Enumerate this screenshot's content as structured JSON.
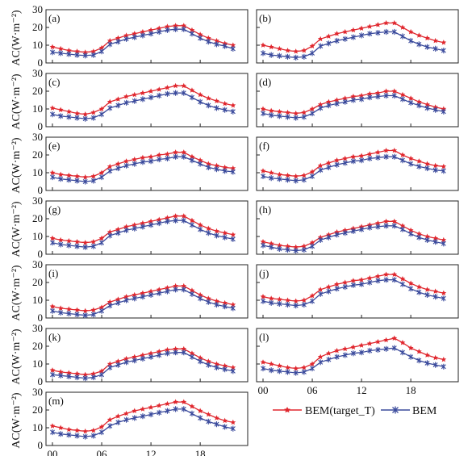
{
  "chart_data": {
    "type": "line",
    "ylabel": "AC(W·m⁻²)",
    "ylim": [
      0,
      30
    ],
    "yticks": [
      0,
      10,
      20,
      30
    ],
    "xlim": [
      0,
      23
    ],
    "xticks": [
      "00",
      "06",
      "12",
      "18"
    ],
    "x": [
      0,
      1,
      2,
      3,
      4,
      5,
      6,
      7,
      8,
      9,
      10,
      11,
      12,
      13,
      14,
      15,
      16,
      17,
      18,
      19,
      20,
      21,
      22
    ],
    "legend": {
      "target": "BEM(target_T)",
      "bem": "BEM"
    },
    "colors": {
      "target": "#e0272e",
      "bem": "#3a4a9c"
    },
    "panels": [
      {
        "label": "(a)",
        "target": [
          9,
          8,
          7,
          6.5,
          6,
          6.5,
          8.5,
          12.5,
          14,
          15.5,
          16.5,
          17.5,
          18.5,
          19.5,
          20.5,
          21,
          21,
          18.5,
          16,
          14,
          12.5,
          11,
          10
        ],
        "bem": [
          6,
          5.5,
          5,
          4.5,
          4.2,
          4.5,
          6.5,
          10.5,
          12,
          13.5,
          14.5,
          15.5,
          16.5,
          17.5,
          18.5,
          19,
          19,
          16.5,
          14,
          12,
          10.5,
          9.5,
          8
        ]
      },
      {
        "label": "(b)",
        "target": [
          10,
          9,
          8,
          7,
          6.5,
          7,
          9.5,
          13.5,
          15,
          16.5,
          17.5,
          18.5,
          19.5,
          20.5,
          21.5,
          22.5,
          22.5,
          20,
          17.5,
          15.5,
          14,
          12.5,
          11.5
        ],
        "bem": [
          5.5,
          4.5,
          4,
          3.5,
          3,
          3.5,
          5.5,
          9.5,
          11,
          12.5,
          13.5,
          14.5,
          15.5,
          16.5,
          17,
          17.5,
          17.5,
          15,
          12.5,
          10.5,
          9,
          8,
          7
        ]
      },
      {
        "label": "(c)",
        "target": [
          10.5,
          9.5,
          8.5,
          7.5,
          7,
          8,
          10,
          14,
          15.5,
          17,
          18,
          19,
          20,
          21,
          22,
          23,
          23,
          20.5,
          18,
          16,
          14.5,
          13,
          12
        ],
        "bem": [
          7,
          6,
          5.5,
          5,
          4.5,
          5,
          7,
          10.5,
          12,
          13.5,
          14.5,
          15.5,
          16.5,
          17.5,
          18.5,
          19,
          19,
          16.5,
          14,
          12,
          10.5,
          9.5,
          8.5
        ]
      },
      {
        "label": "(d)",
        "target": [
          10,
          9,
          8.5,
          8,
          7.5,
          8,
          10,
          12.5,
          14,
          15,
          16,
          17,
          17.5,
          18.5,
          19,
          20,
          20,
          18,
          16,
          14,
          12.5,
          11,
          10
        ],
        "bem": [
          7.5,
          6.5,
          6,
          5.5,
          5,
          5.5,
          7.5,
          10.5,
          12,
          13,
          14,
          15,
          15.5,
          16.5,
          17,
          17.5,
          17.5,
          15.5,
          13.5,
          12,
          10.5,
          9.5,
          8.5
        ]
      },
      {
        "label": "(e)",
        "target": [
          10,
          9,
          8.5,
          8,
          7.5,
          8,
          10,
          13.5,
          15,
          16.5,
          17.5,
          18.5,
          19,
          20,
          20.5,
          21.5,
          21.5,
          19,
          17,
          15,
          14,
          13,
          12.5
        ],
        "bem": [
          7.5,
          6.5,
          6,
          5.5,
          5,
          5.5,
          7.5,
          11,
          12.5,
          14,
          15,
          16,
          16.5,
          17.5,
          18,
          19,
          19,
          17,
          15,
          13,
          12,
          11,
          10.5
        ]
      },
      {
        "label": "(f)",
        "target": [
          11,
          10,
          9,
          8.5,
          8,
          8.5,
          10.5,
          14,
          15.5,
          17,
          18,
          19,
          19.5,
          20.5,
          21.5,
          22.5,
          22.5,
          20,
          18,
          16.5,
          15,
          14,
          13.5
        ],
        "bem": [
          8,
          7,
          6.5,
          6,
          5.5,
          6,
          8,
          11.5,
          13,
          14.5,
          15.5,
          16.5,
          17,
          18,
          18.5,
          19,
          19,
          17,
          15,
          13.5,
          12.5,
          11.5,
          11
        ]
      },
      {
        "label": "(g)",
        "target": [
          9,
          8,
          7.5,
          7,
          6.5,
          7,
          9,
          12.5,
          14,
          15.5,
          16.5,
          17.5,
          18.5,
          19.5,
          20.5,
          21.5,
          21.5,
          19,
          16.5,
          14.5,
          13,
          12,
          11
        ],
        "bem": [
          6.5,
          5.5,
          5,
          4.5,
          4,
          4.5,
          6.5,
          10.5,
          12,
          13.5,
          14.5,
          15.5,
          16.5,
          17.5,
          18.5,
          19,
          19,
          16.5,
          14,
          12,
          10.5,
          9.5,
          8.5
        ]
      },
      {
        "label": "(h)",
        "target": [
          7,
          6,
          5,
          4.5,
          4,
          4.5,
          6.5,
          9.5,
          11,
          12.5,
          13.5,
          14.5,
          15.5,
          16.5,
          17.5,
          18.5,
          18.5,
          16,
          13.5,
          11.5,
          10,
          9,
          8
        ],
        "bem": [
          5,
          4,
          3,
          2.5,
          2,
          2.5,
          4.5,
          8,
          9.5,
          11,
          12,
          13,
          14,
          15,
          15.5,
          16,
          16,
          14,
          11.5,
          9.5,
          8,
          7,
          6
        ]
      },
      {
        "label": "(i)",
        "target": [
          6.5,
          5.5,
          5,
          4.5,
          4,
          4.5,
          6,
          9,
          10.5,
          12,
          13,
          14,
          15,
          16,
          17,
          18,
          18,
          15.5,
          13,
          11,
          9.5,
          8.5,
          7.5
        ],
        "bem": [
          4,
          3,
          2.5,
          2,
          1.5,
          2,
          4,
          7,
          8.5,
          10,
          11,
          12,
          13,
          14,
          15,
          16,
          16,
          13.5,
          11,
          9,
          7.5,
          6.5,
          5.5
        ]
      },
      {
        "label": "(j)",
        "target": [
          12,
          11,
          10.5,
          10,
          9.5,
          10,
          12.5,
          16,
          17.5,
          19,
          20,
          21,
          21.5,
          22.5,
          23.5,
          24.5,
          24.5,
          22,
          19.5,
          17.5,
          16,
          15,
          14
        ],
        "bem": [
          9.5,
          8.5,
          8,
          7.5,
          7,
          7.5,
          9.5,
          13.5,
          15,
          16.5,
          17.5,
          18.5,
          19,
          20,
          21,
          21.5,
          21.5,
          19,
          16.5,
          14.5,
          13,
          12,
          11
        ]
      },
      {
        "label": "(k)",
        "target": [
          6.5,
          5.5,
          5,
          4.5,
          4,
          4.5,
          6,
          10,
          11.5,
          13,
          14,
          15,
          16,
          17,
          18,
          18.5,
          18.5,
          16,
          13.5,
          11.5,
          10,
          9,
          8
        ],
        "bem": [
          4,
          3.5,
          3,
          2.5,
          2,
          2.5,
          4,
          8,
          9.5,
          11,
          12,
          13,
          14,
          15,
          16,
          16.5,
          16.5,
          14,
          11.5,
          9.5,
          8,
          7,
          6
        ]
      },
      {
        "label": "(l)",
        "target": [
          11,
          10,
          9,
          8,
          7.5,
          8,
          10,
          14,
          16,
          17.5,
          18.5,
          19.5,
          20.5,
          21.5,
          22.5,
          23.5,
          24.5,
          22,
          19,
          17,
          15,
          13.5,
          12.5
        ],
        "bem": [
          7.5,
          6.5,
          6,
          5.5,
          5,
          5.5,
          7.5,
          11,
          12.5,
          14,
          15,
          16,
          16.5,
          17.5,
          18,
          18.5,
          19,
          16.5,
          14,
          12,
          10.5,
          9.5,
          8.5
        ]
      },
      {
        "label": "(m)",
        "target": [
          11,
          10,
          9,
          8.5,
          8,
          8.5,
          10.5,
          14.5,
          16.5,
          18,
          19.5,
          20.5,
          21.5,
          22.5,
          23.5,
          24.5,
          24.5,
          22,
          19.5,
          17.5,
          15.5,
          14,
          13
        ],
        "bem": [
          7.5,
          6.5,
          6,
          5.5,
          5,
          5.5,
          7.5,
          11,
          13,
          14.5,
          15.5,
          16.5,
          17.5,
          18.5,
          19.5,
          20.5,
          20.5,
          18,
          15.5,
          13.5,
          12,
          10.5,
          9.5
        ]
      }
    ]
  }
}
